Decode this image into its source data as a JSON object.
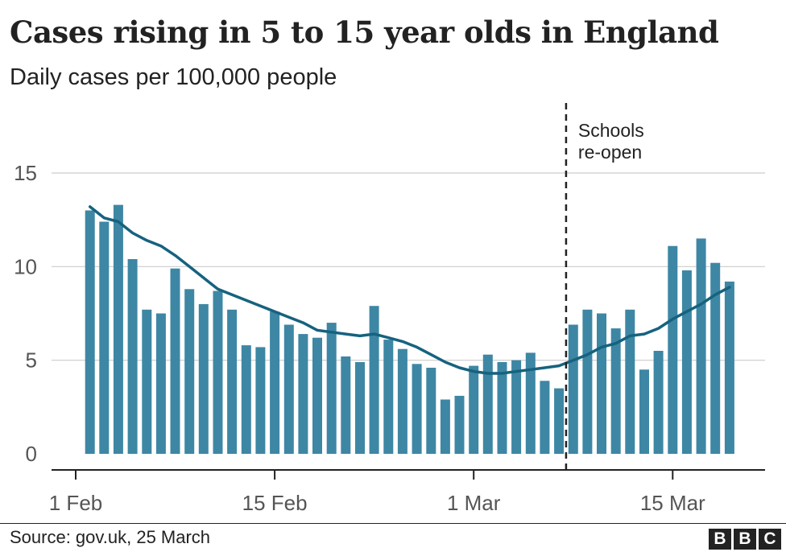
{
  "title": "Cases rising in 5 to 15 year olds in England",
  "subtitle": "Daily cases per 100,000 people",
  "source": "Source: gov.uk, 25 March",
  "logo": [
    "B",
    "B",
    "C"
  ],
  "chart_data": {
    "type": "bar",
    "x_start": "2021-02-02",
    "x_ticks": [
      {
        "label": "1 Feb",
        "date": "2021-02-01"
      },
      {
        "label": "15 Feb",
        "date": "2021-02-15"
      },
      {
        "label": "1 Mar",
        "date": "2021-03-01"
      },
      {
        "label": "15 Mar",
        "date": "2021-03-15"
      }
    ],
    "y_ticks": [
      0,
      5,
      10,
      15
    ],
    "ylim": [
      0,
      15
    ],
    "grid": true,
    "bar_color": "#3d87a4",
    "line_color": "#16627f",
    "bars": [
      13.0,
      12.4,
      13.3,
      10.4,
      7.7,
      7.5,
      9.9,
      8.8,
      8.0,
      8.7,
      7.7,
      5.8,
      5.7,
      7.6,
      6.9,
      6.4,
      6.2,
      7.0,
      5.2,
      4.9,
      7.9,
      6.1,
      5.6,
      4.8,
      4.6,
      2.9,
      3.1,
      4.7,
      5.3,
      4.9,
      5.0,
      5.4,
      3.9,
      3.5,
      6.9,
      7.7,
      7.5,
      6.7,
      7.7,
      4.5,
      5.5,
      11.1,
      9.8,
      11.5,
      10.2,
      9.2
    ],
    "rolling_average": [
      13.2,
      12.6,
      12.4,
      11.8,
      11.4,
      11.1,
      10.6,
      10.0,
      9.4,
      8.8,
      8.5,
      8.2,
      7.9,
      7.6,
      7.3,
      7.0,
      6.6,
      6.5,
      6.4,
      6.3,
      6.4,
      6.2,
      6.0,
      5.7,
      5.3,
      4.9,
      4.6,
      4.4,
      4.3,
      4.3,
      4.4,
      4.5,
      4.6,
      4.7,
      5.0,
      5.3,
      5.7,
      5.9,
      6.3,
      6.4,
      6.7,
      7.2,
      7.6,
      8.0,
      8.5,
      8.9
    ],
    "annotation": {
      "text_lines": [
        "Schools",
        "re-open"
      ],
      "date": "2021-03-08"
    }
  }
}
